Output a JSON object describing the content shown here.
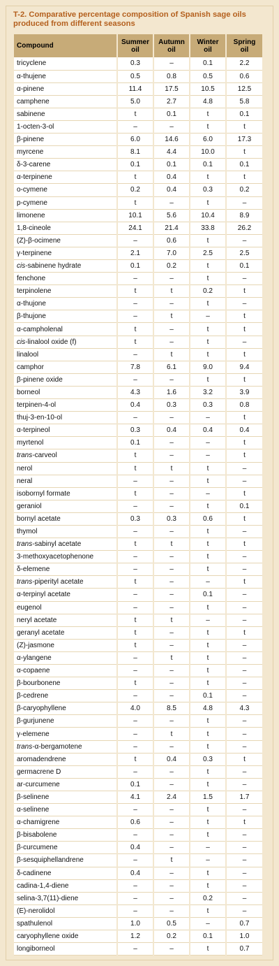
{
  "title": "T-2. Comparative percentage composition of Spanish sage oils produced from different seasons",
  "columns": [
    "Compound",
    "Summer oil",
    "Autumn oil",
    "Winter oil",
    "Spring oil"
  ],
  "rows": [
    [
      "tricyclene",
      "0.3",
      "–",
      "0.1",
      "2.2"
    ],
    [
      "α-thujene",
      "0.5",
      "0.8",
      "0.5",
      "0.6"
    ],
    [
      "α-pinene",
      "11.4",
      "17.5",
      "10.5",
      "12.5"
    ],
    [
      "camphene",
      "5.0",
      "2.7",
      "4.8",
      "5.8"
    ],
    [
      "sabinene",
      "t",
      "0.1",
      "t",
      "0.1"
    ],
    [
      "1-octen-3-ol",
      "–",
      "–",
      "t",
      "t"
    ],
    [
      "β-pinene",
      "6.0",
      "14.6",
      "6.0",
      "17.3"
    ],
    [
      "myrcene",
      "8.1",
      "4.4",
      "10.0",
      "t"
    ],
    [
      "δ-3-carene",
      "0.1",
      "0.1",
      "0.1",
      "0.1"
    ],
    [
      "α-terpinene",
      "t",
      "0.4",
      "t",
      "t"
    ],
    [
      "o-cymene",
      "0.2",
      "0.4",
      "0.3",
      "0.2"
    ],
    [
      "p-cymene",
      "t",
      "–",
      "t",
      "–"
    ],
    [
      "limonene",
      "10.1",
      "5.6",
      "10.4",
      "8.9"
    ],
    [
      "1,8-cineole",
      "24.1",
      "21.4",
      "33.8",
      "26.2"
    ],
    [
      "(Z)-β-ocimene",
      "–",
      "0.6",
      "t",
      "–"
    ],
    [
      "γ-terpinene",
      "2.1",
      "7.0",
      "2.5",
      "2.5"
    ],
    [
      "cis-sabinene hydrate",
      "0.1",
      "0.2",
      "t",
      "0.1"
    ],
    [
      "fenchone",
      "–",
      "–",
      "t",
      "–"
    ],
    [
      "terpinolene",
      "t",
      "t",
      "0.2",
      "t"
    ],
    [
      "α-thujone",
      "–",
      "–",
      "t",
      "–"
    ],
    [
      "β-thujone",
      "–",
      "t",
      "–",
      "t"
    ],
    [
      "α-campholenal",
      "t",
      "–",
      "t",
      "t"
    ],
    [
      "cis-linalool oxide (f)",
      "t",
      "–",
      "t",
      "–"
    ],
    [
      "linalool",
      "–",
      "t",
      "t",
      "t"
    ],
    [
      "camphor",
      "7.8",
      "6.1",
      "9.0",
      "9.4"
    ],
    [
      "β-pinene oxide",
      "–",
      "–",
      "t",
      "t"
    ],
    [
      "borneol",
      "4.3",
      "1.6",
      "3.2",
      "3.9"
    ],
    [
      "terpinen-4-ol",
      "0.4",
      "0.3",
      "0.3",
      "0.8"
    ],
    [
      "thuj-3-en-10-ol",
      "–",
      "–",
      "–",
      "t"
    ],
    [
      "α-terpineol",
      "0.3",
      "0.4",
      "0.4",
      "0.4"
    ],
    [
      "myrtenol",
      "0.1",
      "–",
      "–",
      "t"
    ],
    [
      "trans-carveol",
      "t",
      "–",
      "–",
      "t"
    ],
    [
      "nerol",
      "t",
      "t",
      "t",
      "–"
    ],
    [
      "neral",
      "–",
      "–",
      "t",
      "–"
    ],
    [
      "isobornyl formate",
      "t",
      "–",
      "–",
      "t"
    ],
    [
      "geraniol",
      "–",
      "–",
      "t",
      "0.1"
    ],
    [
      "bornyl acetate",
      "0.3",
      "0.3",
      "0.6",
      "t"
    ],
    [
      "thymol",
      "–",
      "–",
      "t",
      "–"
    ],
    [
      "trans-sabinyl acetate",
      "t",
      "t",
      "t",
      "t"
    ],
    [
      "3-methoxyacetophenone",
      "–",
      "–",
      "t",
      "–"
    ],
    [
      "δ-elemene",
      "–",
      "–",
      "t",
      "–"
    ],
    [
      "trans-piperityl acetate",
      "t",
      "–",
      "–",
      "t"
    ],
    [
      "α-terpinyl acetate",
      "–",
      "–",
      "0.1",
      "–"
    ],
    [
      "eugenol",
      "–",
      "–",
      "t",
      "–"
    ],
    [
      "neryl acetate",
      "t",
      "t",
      "–",
      "–"
    ],
    [
      "geranyl acetate",
      "t",
      "–",
      "t",
      "t"
    ],
    [
      "(Z)-jasmone",
      "t",
      "–",
      "t",
      "–"
    ],
    [
      "α-ylangene",
      "–",
      "t",
      "t",
      "–"
    ],
    [
      "α-copaene",
      "–",
      "–",
      "t",
      "–"
    ],
    [
      "β-bourbonene",
      "t",
      "–",
      "t",
      "–"
    ],
    [
      "β-cedrene",
      "–",
      "–",
      "0.1",
      "–"
    ],
    [
      "β-caryophyllene",
      "4.0",
      "8.5",
      "4.8",
      "4.3"
    ],
    [
      "β-gurjunene",
      "–",
      "–",
      "t",
      "–"
    ],
    [
      "γ-elemene",
      "–",
      "t",
      "t",
      "–"
    ],
    [
      "trans-α-bergamotene",
      "–",
      "–",
      "t",
      "–"
    ],
    [
      "aromadendrene",
      "t",
      "0.4",
      "0.3",
      "t"
    ],
    [
      "germacrene D",
      "–",
      "–",
      "t",
      "–"
    ],
    [
      "ar-curcumene",
      "0.1",
      "–",
      "t",
      "–"
    ],
    [
      "β-selinene",
      "4.1",
      "2.4",
      "1.5",
      "1.7"
    ],
    [
      "α-selinene",
      "–",
      "–",
      "t",
      "–"
    ],
    [
      "α-chamigrene",
      "0.6",
      "–",
      "t",
      "t"
    ],
    [
      "β-bisabolene",
      "–",
      "–",
      "t",
      "–"
    ],
    [
      "β-curcumene",
      "0.4",
      "–",
      "–",
      "–"
    ],
    [
      "β-sesquiphellandrene",
      "–",
      "t",
      "–",
      "–"
    ],
    [
      "δ-cadinene",
      "0.4",
      "–",
      "t",
      "–"
    ],
    [
      "cadina-1,4-diene",
      "–",
      "–",
      "t",
      "–"
    ],
    [
      "selina-3,7(11)-diene",
      "–",
      "–",
      "0.2",
      "–"
    ],
    [
      "(E)-nerolidol",
      "–",
      "–",
      "t",
      "–"
    ],
    [
      "spathulenol",
      "1.0",
      "0.5",
      "–",
      "0.7"
    ],
    [
      "caryophyllene oxide",
      "1.2",
      "0.2",
      "0.1",
      "1.0"
    ],
    [
      "longiborneol",
      "–",
      "–",
      "t",
      "0.7"
    ]
  ]
}
